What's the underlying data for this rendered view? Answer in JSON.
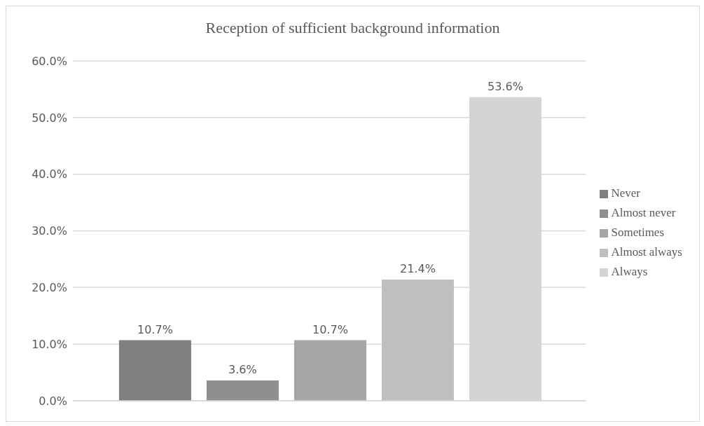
{
  "chart_data": {
    "type": "bar",
    "title": "Reception of sufficient background information",
    "categories": [
      null
    ],
    "series": [
      {
        "name": "Never",
        "color": "#7f7f7f",
        "values": [
          10.7
        ],
        "value_labels": [
          "10.7%"
        ]
      },
      {
        "name": "Almost never",
        "color": "#8f8f8f",
        "values": [
          3.6
        ],
        "value_labels": [
          "3.6%"
        ]
      },
      {
        "name": "Sometimes",
        "color": "#a5a5a5",
        "values": [
          10.7
        ],
        "value_labels": [
          "10.7%"
        ]
      },
      {
        "name": "Almost always",
        "color": "#bfbfbf",
        "values": [
          21.4
        ],
        "value_labels": [
          "21.4%"
        ]
      },
      {
        "name": "Always",
        "color": "#d4d4d4",
        "values": [
          53.6
        ],
        "value_labels": [
          "53.6%"
        ]
      }
    ],
    "ylim": [
      0,
      60
    ],
    "yticks": [
      {
        "value": 0,
        "label": "0.0%"
      },
      {
        "value": 10,
        "label": "10.0%"
      },
      {
        "value": 20,
        "label": "20.0%"
      },
      {
        "value": 30,
        "label": "30.0%"
      },
      {
        "value": 40,
        "label": "40.0%"
      },
      {
        "value": 50,
        "label": "50.0%"
      },
      {
        "value": 60,
        "label": "60.0%"
      }
    ],
    "grid": "y",
    "legend": "right"
  }
}
